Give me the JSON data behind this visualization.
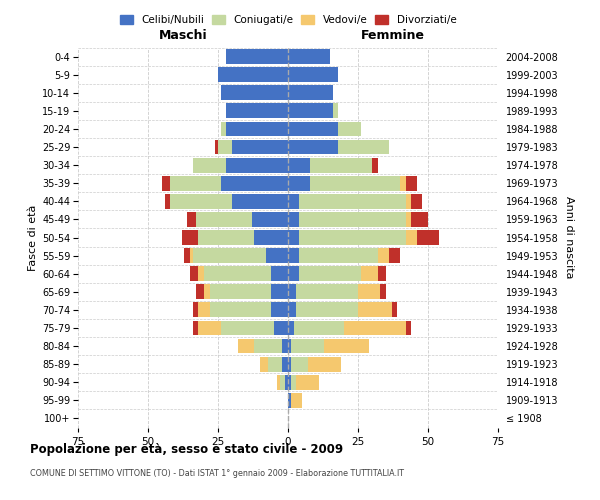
{
  "age_groups": [
    "100+",
    "95-99",
    "90-94",
    "85-89",
    "80-84",
    "75-79",
    "70-74",
    "65-69",
    "60-64",
    "55-59",
    "50-54",
    "45-49",
    "40-44",
    "35-39",
    "30-34",
    "25-29",
    "20-24",
    "15-19",
    "10-14",
    "5-9",
    "0-4"
  ],
  "birth_years": [
    "≤ 1908",
    "1909-1913",
    "1914-1918",
    "1919-1923",
    "1924-1928",
    "1929-1933",
    "1934-1938",
    "1939-1943",
    "1944-1948",
    "1949-1953",
    "1954-1958",
    "1959-1963",
    "1964-1968",
    "1969-1973",
    "1974-1978",
    "1979-1983",
    "1984-1988",
    "1989-1993",
    "1994-1998",
    "1999-2003",
    "2004-2008"
  ],
  "maschi": {
    "celibi": [
      0,
      0,
      1,
      2,
      2,
      5,
      6,
      6,
      6,
      8,
      12,
      13,
      20,
      24,
      22,
      20,
      22,
      22,
      24,
      25,
      22
    ],
    "coniugati": [
      0,
      0,
      2,
      5,
      10,
      19,
      22,
      22,
      24,
      26,
      20,
      20,
      22,
      18,
      12,
      5,
      2,
      0,
      0,
      0,
      0
    ],
    "vedovi": [
      0,
      0,
      1,
      3,
      6,
      8,
      4,
      2,
      2,
      1,
      0,
      0,
      0,
      0,
      0,
      0,
      0,
      0,
      0,
      0,
      0
    ],
    "divorziati": [
      0,
      0,
      0,
      0,
      0,
      2,
      2,
      3,
      3,
      2,
      6,
      3,
      2,
      3,
      0,
      1,
      0,
      0,
      0,
      0,
      0
    ]
  },
  "femmine": {
    "nubili": [
      0,
      1,
      1,
      1,
      1,
      2,
      3,
      3,
      4,
      4,
      4,
      4,
      4,
      8,
      8,
      18,
      18,
      16,
      16,
      18,
      15
    ],
    "coniugate": [
      0,
      0,
      2,
      6,
      12,
      18,
      22,
      22,
      22,
      28,
      38,
      38,
      38,
      32,
      22,
      18,
      8,
      2,
      0,
      0,
      0
    ],
    "vedove": [
      0,
      4,
      8,
      12,
      16,
      22,
      12,
      8,
      6,
      4,
      4,
      2,
      2,
      2,
      0,
      0,
      0,
      0,
      0,
      0,
      0
    ],
    "divorziate": [
      0,
      0,
      0,
      0,
      0,
      2,
      2,
      2,
      3,
      4,
      8,
      6,
      4,
      4,
      2,
      0,
      0,
      0,
      0,
      0,
      0
    ]
  },
  "colors": {
    "celibi": "#4472C4",
    "coniugati": "#C5D9A0",
    "vedovi": "#F5C86E",
    "divorziati": "#C0302A"
  },
  "legend_labels": [
    "Celibi/Nubili",
    "Coniugati/e",
    "Vedovi/e",
    "Divorziati/e"
  ],
  "title": "Popolazione per età, sesso e stato civile - 2009",
  "subtitle": "COMUNE DI SETTIMO VITTONE (TO) - Dati ISTAT 1° gennaio 2009 - Elaborazione TUTTITALIA.IT",
  "label_maschi": "Maschi",
  "label_femmine": "Femmine",
  "ylabel_left": "Fasce di età",
  "ylabel_right": "Anni di nascita",
  "xlim": 75,
  "xticks": [
    -75,
    -50,
    -25,
    0,
    25,
    50,
    75
  ],
  "xticklabels": [
    "75",
    "50",
    "25",
    "0",
    "25",
    "50",
    "75"
  ],
  "bg_color": "#ffffff",
  "grid_color": "#cccccc"
}
